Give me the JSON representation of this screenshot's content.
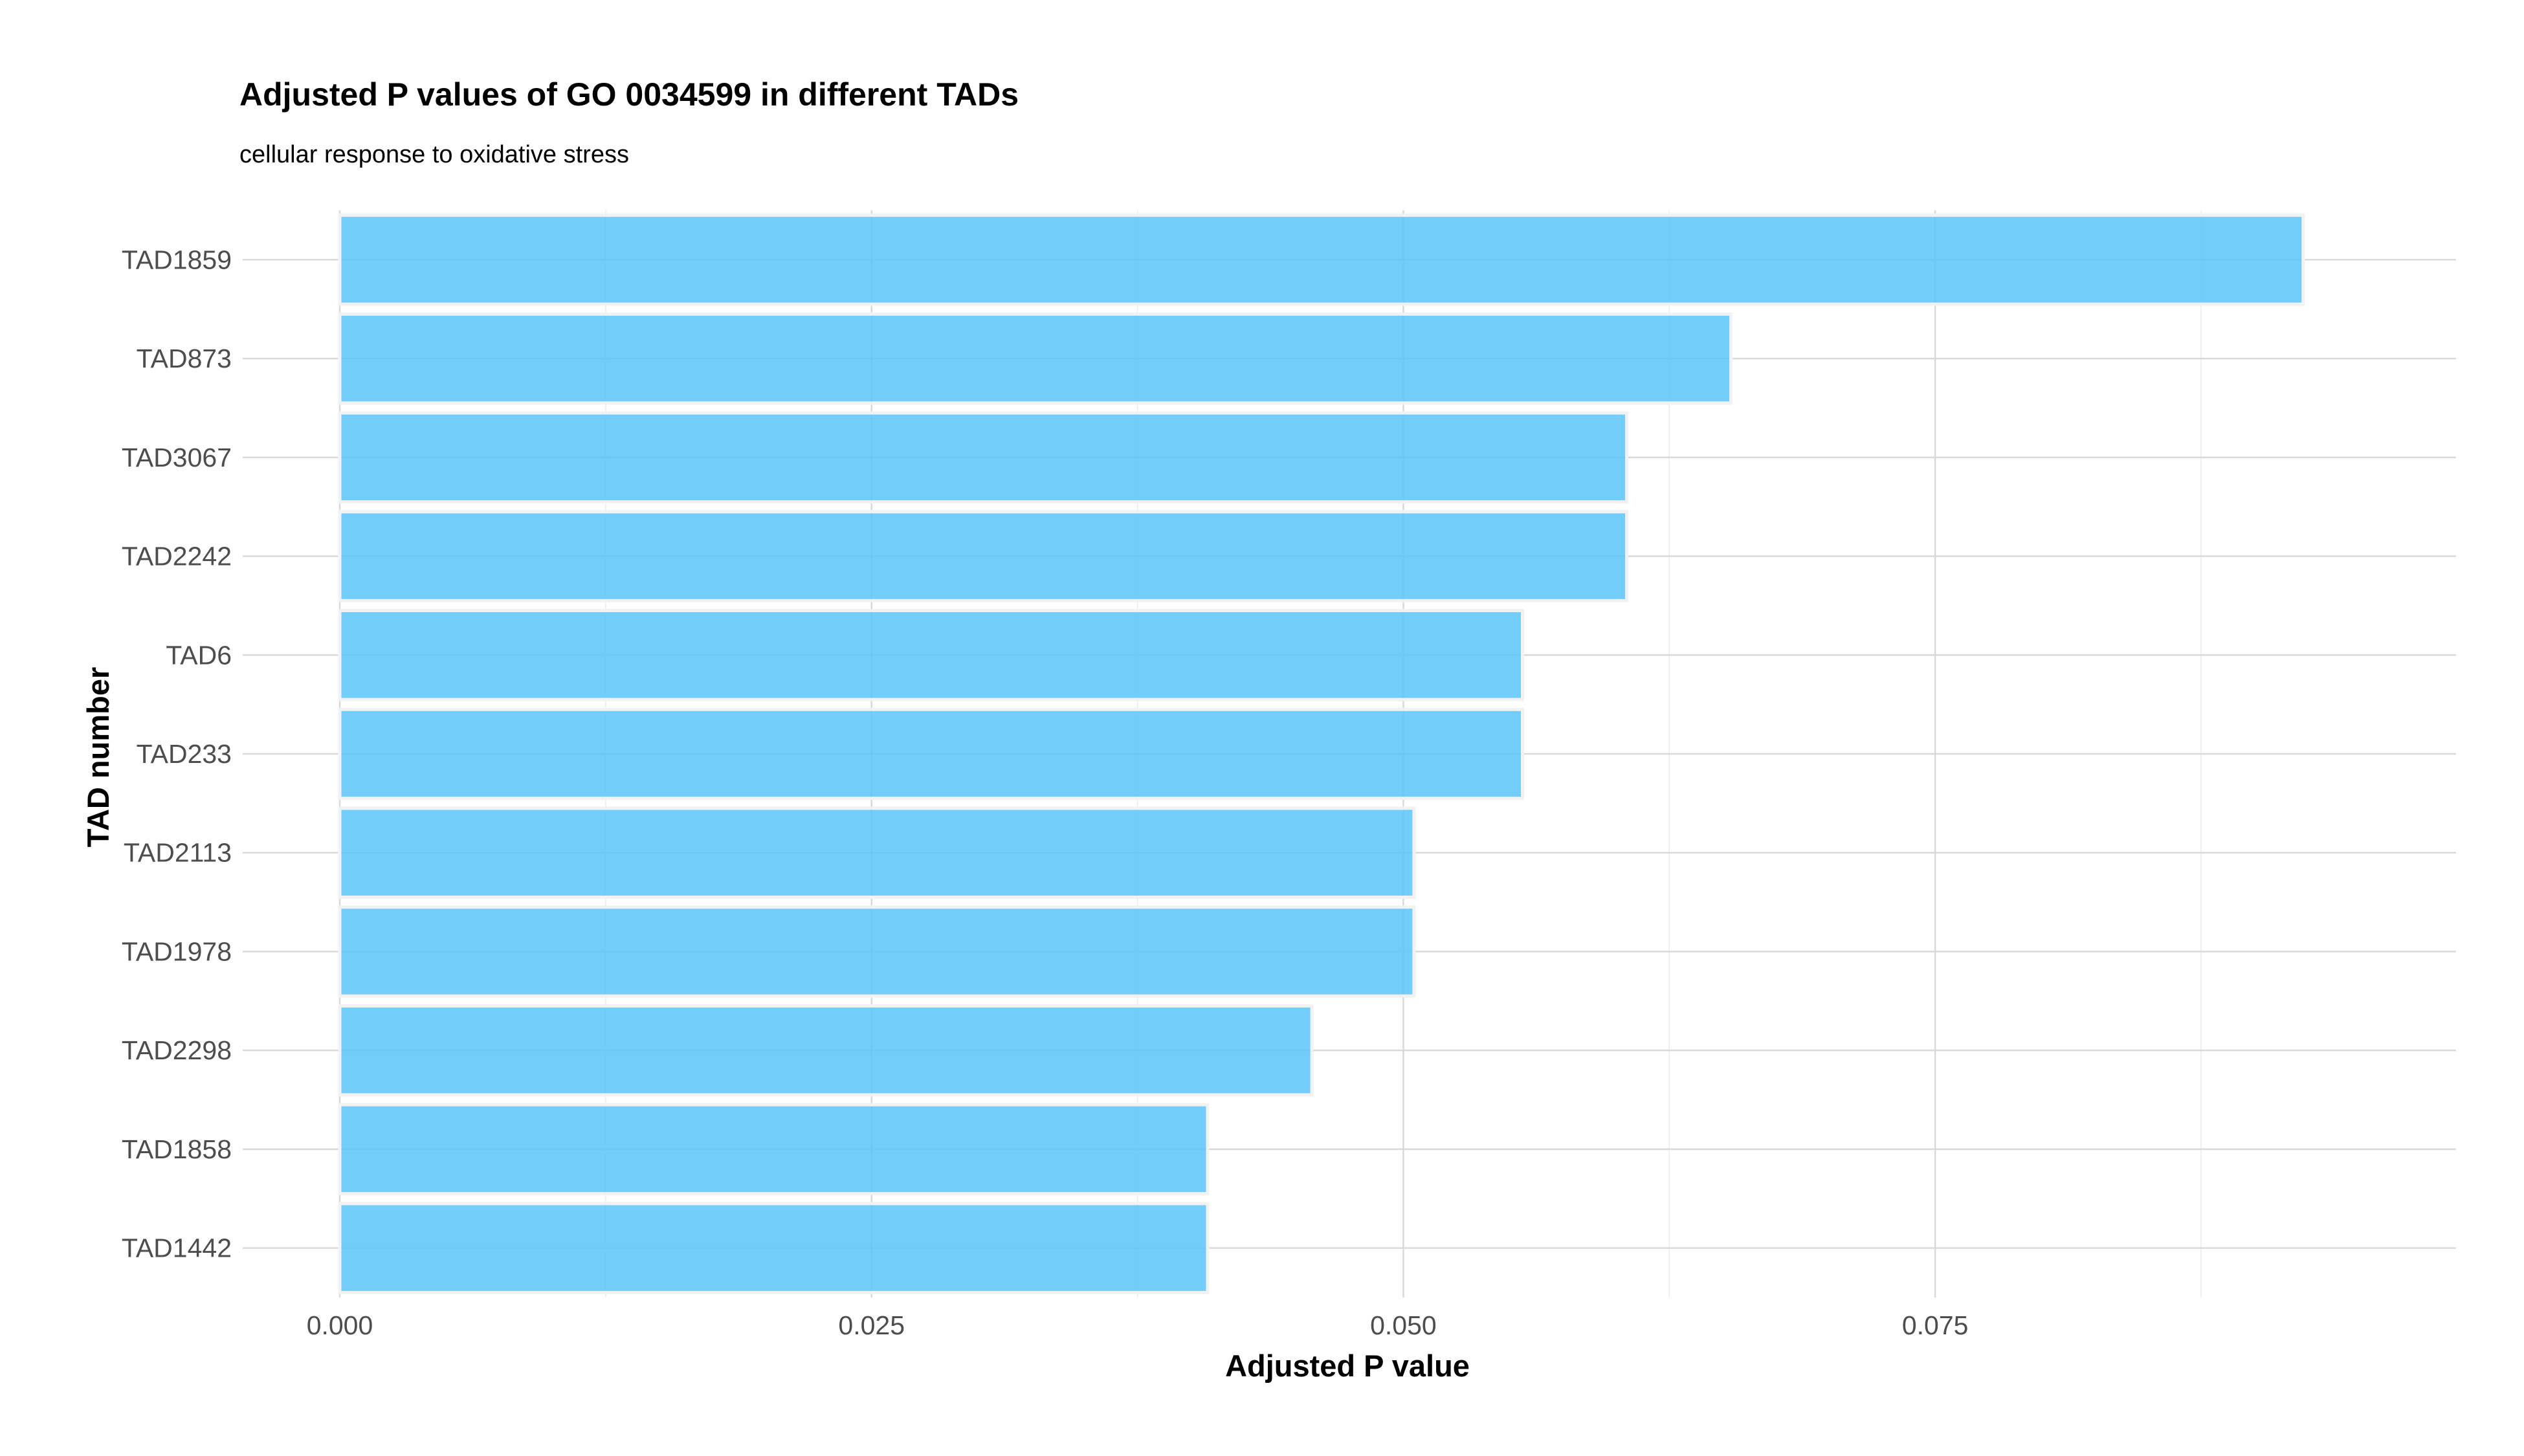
{
  "chart_data": {
    "type": "bar",
    "orientation": "horizontal",
    "title": "Adjusted P values of GO 0034599 in different TADs",
    "subtitle": "cellular response to oxidative stress",
    "xlabel": "Adjusted P value",
    "ylabel": "TAD number",
    "categories": [
      "TAD1859",
      "TAD873",
      "TAD3067",
      "TAD2242",
      "TAD6",
      "TAD233",
      "TAD2113",
      "TAD1978",
      "TAD2298",
      "TAD1858",
      "TAD1442"
    ],
    "values": [
      0.0923,
      0.0654,
      0.0605,
      0.0605,
      0.0556,
      0.0556,
      0.0505,
      0.0505,
      0.0457,
      0.0408,
      0.0408
    ],
    "xlim": [
      0,
      0.097
    ],
    "x_ticks": [
      0,
      0.025,
      0.05,
      0.075
    ],
    "x_tick_labels": [
      "0.000",
      "0.025",
      "0.050",
      "0.075"
    ],
    "grid": true,
    "legend": "none",
    "bar_color": "#5bc4fa"
  }
}
